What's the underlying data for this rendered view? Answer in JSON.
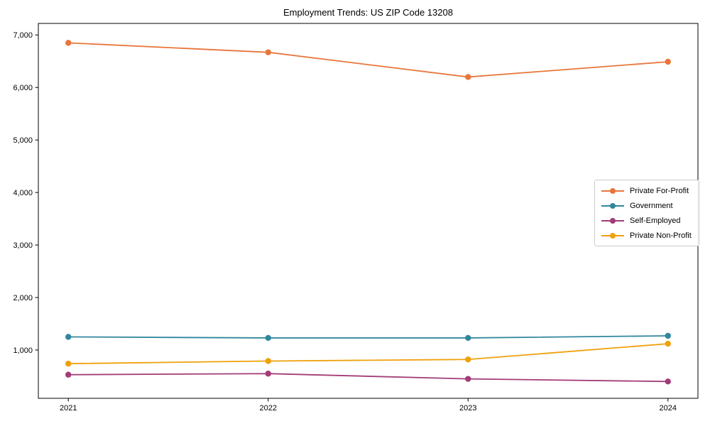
{
  "chart_data": {
    "type": "line",
    "title": "Employment Trends: US ZIP Code 13208",
    "xlabel": "",
    "ylabel": "",
    "x": [
      2021,
      2022,
      2023,
      2024
    ],
    "x_tick_labels": [
      "2021",
      "2022",
      "2023",
      "2024"
    ],
    "series": [
      {
        "name": "Private For-Profit",
        "color": "#e8763b",
        "values": [
          6850,
          6670,
          6200,
          6490
        ]
      },
      {
        "name": "Government",
        "color": "#31879e",
        "values": [
          1250,
          1230,
          1230,
          1270
        ]
      },
      {
        "name": "Self-Employed",
        "color": "#a33c76",
        "values": [
          530,
          550,
          450,
          400
        ]
      },
      {
        "name": "Private Non-Profit",
        "color": "#efa00b",
        "values": [
          740,
          790,
          820,
          1120
        ]
      }
    ],
    "axes": {
      "xlim": [
        2020.85,
        2024.15
      ],
      "ylim": [
        80,
        7220
      ],
      "y_ticks": [
        {
          "value": 1000,
          "label": "1,000"
        },
        {
          "value": 2000,
          "label": "2,000"
        },
        {
          "value": 3000,
          "label": "3,000"
        },
        {
          "value": 4000,
          "label": "4,000"
        },
        {
          "value": 5000,
          "label": "5,000"
        },
        {
          "value": 6000,
          "label": "6,000"
        },
        {
          "value": 7000,
          "label": "7,000"
        }
      ],
      "grid": false,
      "spine_color": "#000000",
      "tick_label_color": "#000000"
    },
    "legend_position": "center-right",
    "line_width": 1.8,
    "marker": "circle",
    "marker_radius": 4.2,
    "background_color": "#ffffff"
  }
}
